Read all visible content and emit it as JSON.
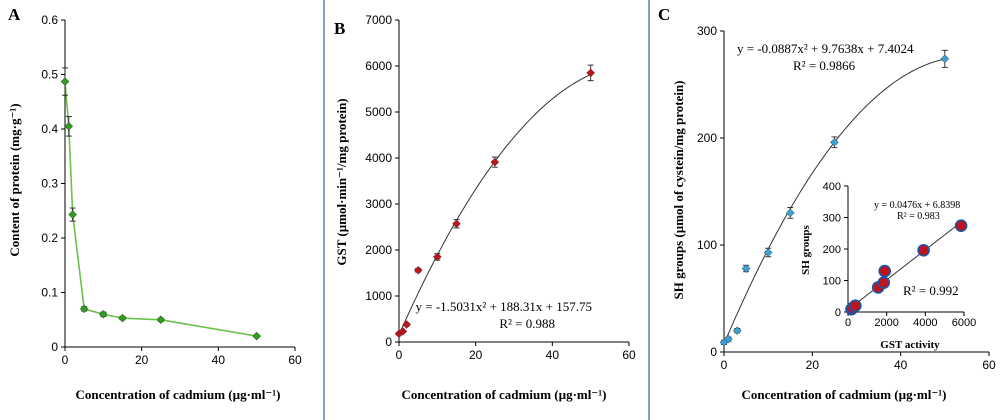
{
  "chart_data": [
    {
      "type": "line",
      "panel": "A",
      "title": "",
      "xlabel": "Concentration of cadmium (µg·ml⁻¹)",
      "ylabel": "Content of protein (mg·g⁻¹)",
      "xlim": [
        0,
        60
      ],
      "ylim": [
        0,
        0.6
      ],
      "xticks": [
        0,
        20,
        40,
        60
      ],
      "yticks": [
        0,
        0.1,
        0.2,
        0.3,
        0.4,
        0.5,
        0.6
      ],
      "xtick_labels": [
        "0",
        "20",
        "40",
        "60"
      ],
      "ytick_labels": [
        "0",
        "0.1",
        "0.2",
        "0.3",
        "0.4",
        "0.5",
        "0.6"
      ],
      "marker_color": "#2e9e1e",
      "line_color": "#6cc24a",
      "series": [
        {
          "name": "protein",
          "x": [
            0,
            1,
            2,
            5,
            10,
            15,
            25,
            50
          ],
          "y": [
            0.487,
            0.405,
            0.243,
            0.07,
            0.06,
            0.053,
            0.05,
            0.02
          ],
          "err": [
            0.025,
            0.018,
            0.012,
            0.004,
            0.004,
            0.003,
            0.003,
            0.002
          ]
        }
      ]
    },
    {
      "type": "scatter",
      "panel": "B",
      "title": "",
      "xlabel": "Concentration of cadmium (µg·ml⁻¹)",
      "ylabel": "GST (µmol·min⁻¹/mg protein)",
      "xlim": [
        0,
        60
      ],
      "ylim": [
        0,
        7000
      ],
      "xticks": [
        0,
        20,
        40,
        60
      ],
      "yticks": [
        0,
        1000,
        2000,
        3000,
        4000,
        5000,
        6000,
        7000
      ],
      "xtick_labels": [
        "0",
        "20",
        "40",
        "60"
      ],
      "ytick_labels": [
        "0",
        "1000",
        "2000",
        "3000",
        "4000",
        "5000",
        "6000",
        "7000"
      ],
      "marker_color": "#c0141c",
      "fit": {
        "a": -1.5031,
        "b": 188.31,
        "c": 157.75,
        "x_range": [
          0,
          50
        ]
      },
      "equation": "y = -1.5031x² + 188.31x + 157.75",
      "r2": "R² = 0.988",
      "series": [
        {
          "name": "GST",
          "x": [
            0,
            1,
            2,
            5,
            10,
            15,
            25,
            50
          ],
          "y": [
            180,
            230,
            380,
            1560,
            1850,
            2570,
            3910,
            5850
          ],
          "err": [
            20,
            20,
            30,
            40,
            70,
            90,
            110,
            170
          ]
        }
      ]
    },
    {
      "type": "scatter",
      "panel": "C",
      "title": "",
      "xlabel": "Concentration of cadmium (µg·ml⁻¹)",
      "ylabel": "SH groups (µmol of cystein/mg protein)",
      "xlim": [
        0,
        60
      ],
      "ylim": [
        0,
        300
      ],
      "xticks": [
        0,
        20,
        40,
        60
      ],
      "yticks": [
        0,
        100,
        200,
        300
      ],
      "xtick_labels": [
        "0",
        "20",
        "40",
        "60"
      ],
      "ytick_labels": [
        "0",
        "100",
        "200",
        "300"
      ],
      "marker_color": "#3ba0d6",
      "fit": {
        "a": -0.0887,
        "b": 9.7638,
        "c": 7.4024,
        "x_range": [
          0,
          50
        ]
      },
      "equation": "y = -0.0887x² + 9.7638x + 7.4024",
      "r2": "R² = 0.9866",
      "series": [
        {
          "name": "SH groups",
          "x": [
            0,
            1,
            3,
            5,
            10,
            15,
            25,
            50
          ],
          "y": [
            9,
            12,
            20,
            78,
            93,
            130,
            196,
            274
          ],
          "err": [
            2,
            2,
            2,
            3,
            4,
            5,
            5,
            8
          ]
        }
      ]
    },
    {
      "type": "scatter",
      "panel": "C-inset",
      "title": "",
      "xlabel": "GST activity",
      "ylabel": "SH groups",
      "xlim": [
        0,
        6000
      ],
      "ylim": [
        0,
        400
      ],
      "xticks": [
        0,
        2000,
        4000,
        6000
      ],
      "yticks": [
        0,
        100,
        200,
        300,
        400
      ],
      "xtick_labels": [
        "0",
        "2000",
        "4000",
        "6000"
      ],
      "ytick_labels": [
        "0",
        "100",
        "200",
        "300",
        "400"
      ],
      "marker_color": "#c0141c",
      "marker_edge": "#1a55a8",
      "fit": {
        "slope": 0.0476,
        "intercept": 6.8398,
        "x_range": [
          180,
          5850
        ]
      },
      "equation": "y = 0.0476x + 6.8398",
      "r2": "R² = 0.983",
      "r2_large": "R² = 0.992",
      "series": [
        {
          "name": "SH vs GST",
          "x": [
            180,
            230,
            380,
            1560,
            1850,
            1900,
            3910,
            5850
          ],
          "y": [
            9,
            12,
            20,
            78,
            93,
            130,
            196,
            274
          ]
        }
      ]
    }
  ]
}
